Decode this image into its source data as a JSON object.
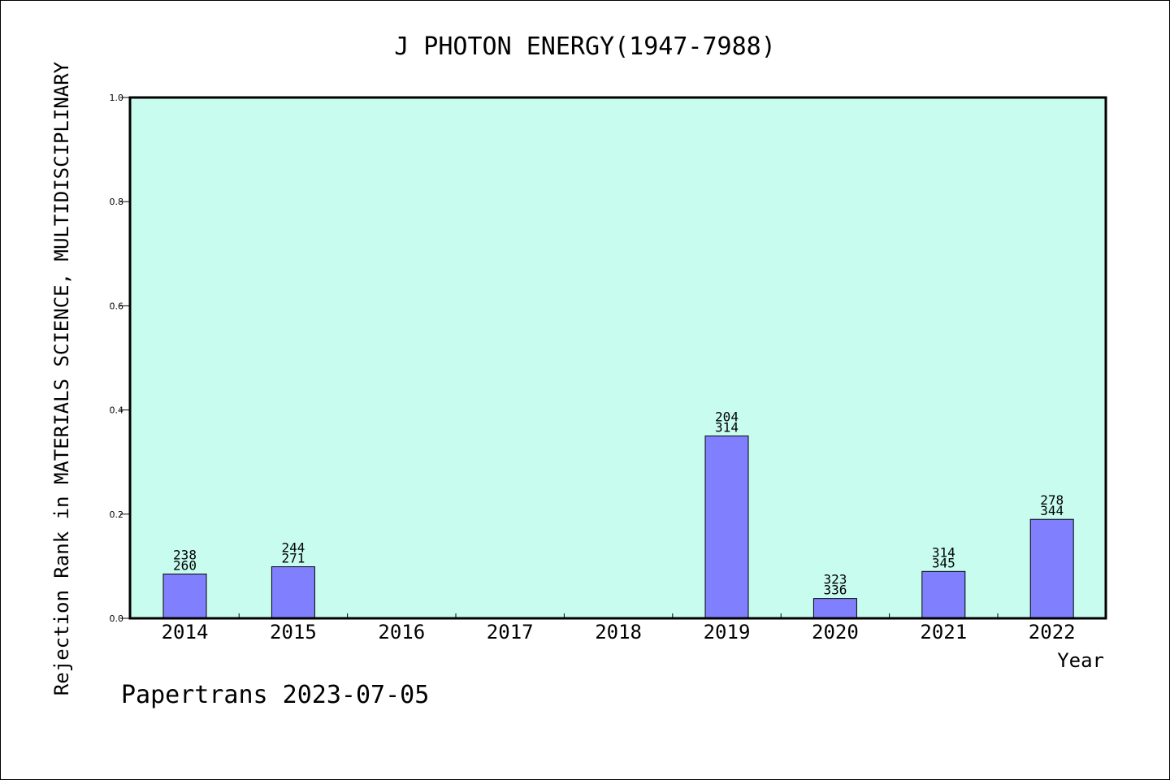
{
  "chart_data": {
    "type": "bar",
    "title": "J PHOTON ENERGY(1947-7988)",
    "xlabel": "Year",
    "ylabel": "Rejection Rank in MATERIALS SCIENCE, MULTIDISCIPLINARY",
    "ylim": [
      0,
      1.0
    ],
    "yticks": [
      "0.0",
      "0.2",
      "0.4",
      "0.6",
      "0.8",
      "1.0"
    ],
    "categories": [
      "2014",
      "2015",
      "2016",
      "2017",
      "2018",
      "2019",
      "2020",
      "2021",
      "2022"
    ],
    "values": [
      0.085,
      0.099,
      null,
      null,
      null,
      0.35,
      0.038,
      0.09,
      0.19
    ],
    "labels_top": [
      "238",
      "244",
      "",
      "",
      "",
      "204",
      "323",
      "314",
      "278"
    ],
    "labels_bottom": [
      "260",
      "271",
      "",
      "",
      "",
      "314",
      "336",
      "345",
      "344"
    ],
    "grid": false,
    "colors": {
      "plot_bg": "#c8fcee",
      "bar": "#8080ff",
      "border": "#000000"
    }
  },
  "footer": {
    "credit": "Papertrans 2023-07-05"
  }
}
